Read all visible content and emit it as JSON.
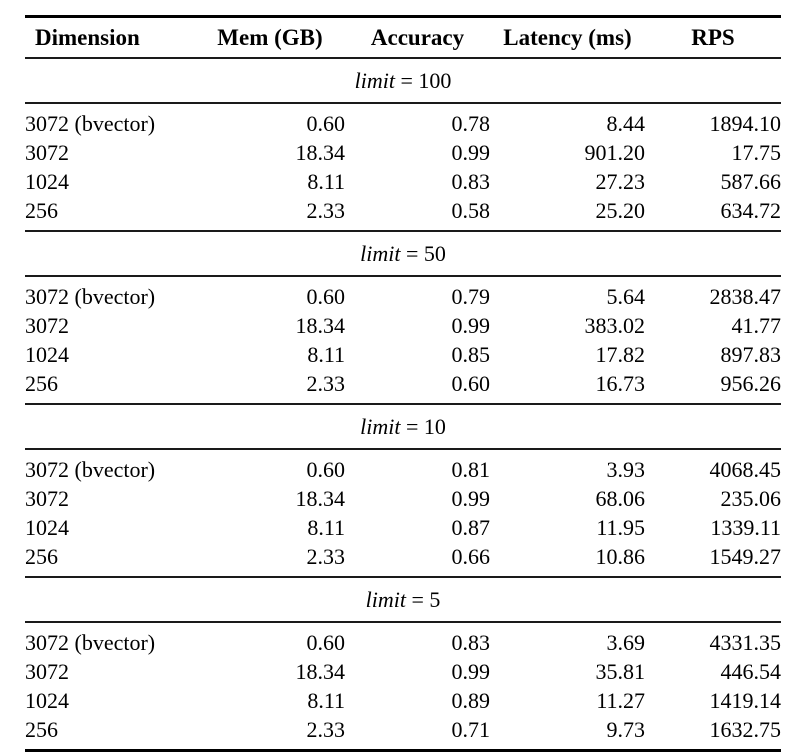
{
  "table": {
    "headers": [
      "Dimension",
      "Mem (GB)",
      "Accuracy",
      "Latency (ms)",
      "RPS"
    ],
    "sections": [
      {
        "label_var": "limit",
        "label_rest": " = 100",
        "rows": [
          [
            "3072 (bvector)",
            "0.60",
            "0.78",
            "8.44",
            "1894.10"
          ],
          [
            "3072",
            "18.34",
            "0.99",
            "901.20",
            "17.75"
          ],
          [
            "1024",
            "8.11",
            "0.83",
            "27.23",
            "587.66"
          ],
          [
            "256",
            "2.33",
            "0.58",
            "25.20",
            "634.72"
          ]
        ]
      },
      {
        "label_var": "limit",
        "label_rest": " = 50",
        "rows": [
          [
            "3072 (bvector)",
            "0.60",
            "0.79",
            "5.64",
            "2838.47"
          ],
          [
            "3072",
            "18.34",
            "0.99",
            "383.02",
            "41.77"
          ],
          [
            "1024",
            "8.11",
            "0.85",
            "17.82",
            "897.83"
          ],
          [
            "256",
            "2.33",
            "0.60",
            "16.73",
            "956.26"
          ]
        ]
      },
      {
        "label_var": "limit",
        "label_rest": " = 10",
        "rows": [
          [
            "3072 (bvector)",
            "0.60",
            "0.81",
            "3.93",
            "4068.45"
          ],
          [
            "3072",
            "18.34",
            "0.99",
            "68.06",
            "235.06"
          ],
          [
            "1024",
            "8.11",
            "0.87",
            "11.95",
            "1339.11"
          ],
          [
            "256",
            "2.33",
            "0.66",
            "10.86",
            "1549.27"
          ]
        ]
      },
      {
        "label_var": "limit",
        "label_rest": " = 5",
        "rows": [
          [
            "3072 (bvector)",
            "0.60",
            "0.83",
            "3.69",
            "4331.35"
          ],
          [
            "3072",
            "18.34",
            "0.99",
            "35.81",
            "446.54"
          ],
          [
            "1024",
            "8.11",
            "0.89",
            "11.27",
            "1419.14"
          ],
          [
            "256",
            "2.33",
            "0.71",
            "9.73",
            "1632.75"
          ]
        ]
      }
    ]
  },
  "colors": {
    "text": "#000000",
    "rule_heavy": "#000000",
    "rule_light": "#1a1a1a",
    "background": "#ffffff"
  }
}
